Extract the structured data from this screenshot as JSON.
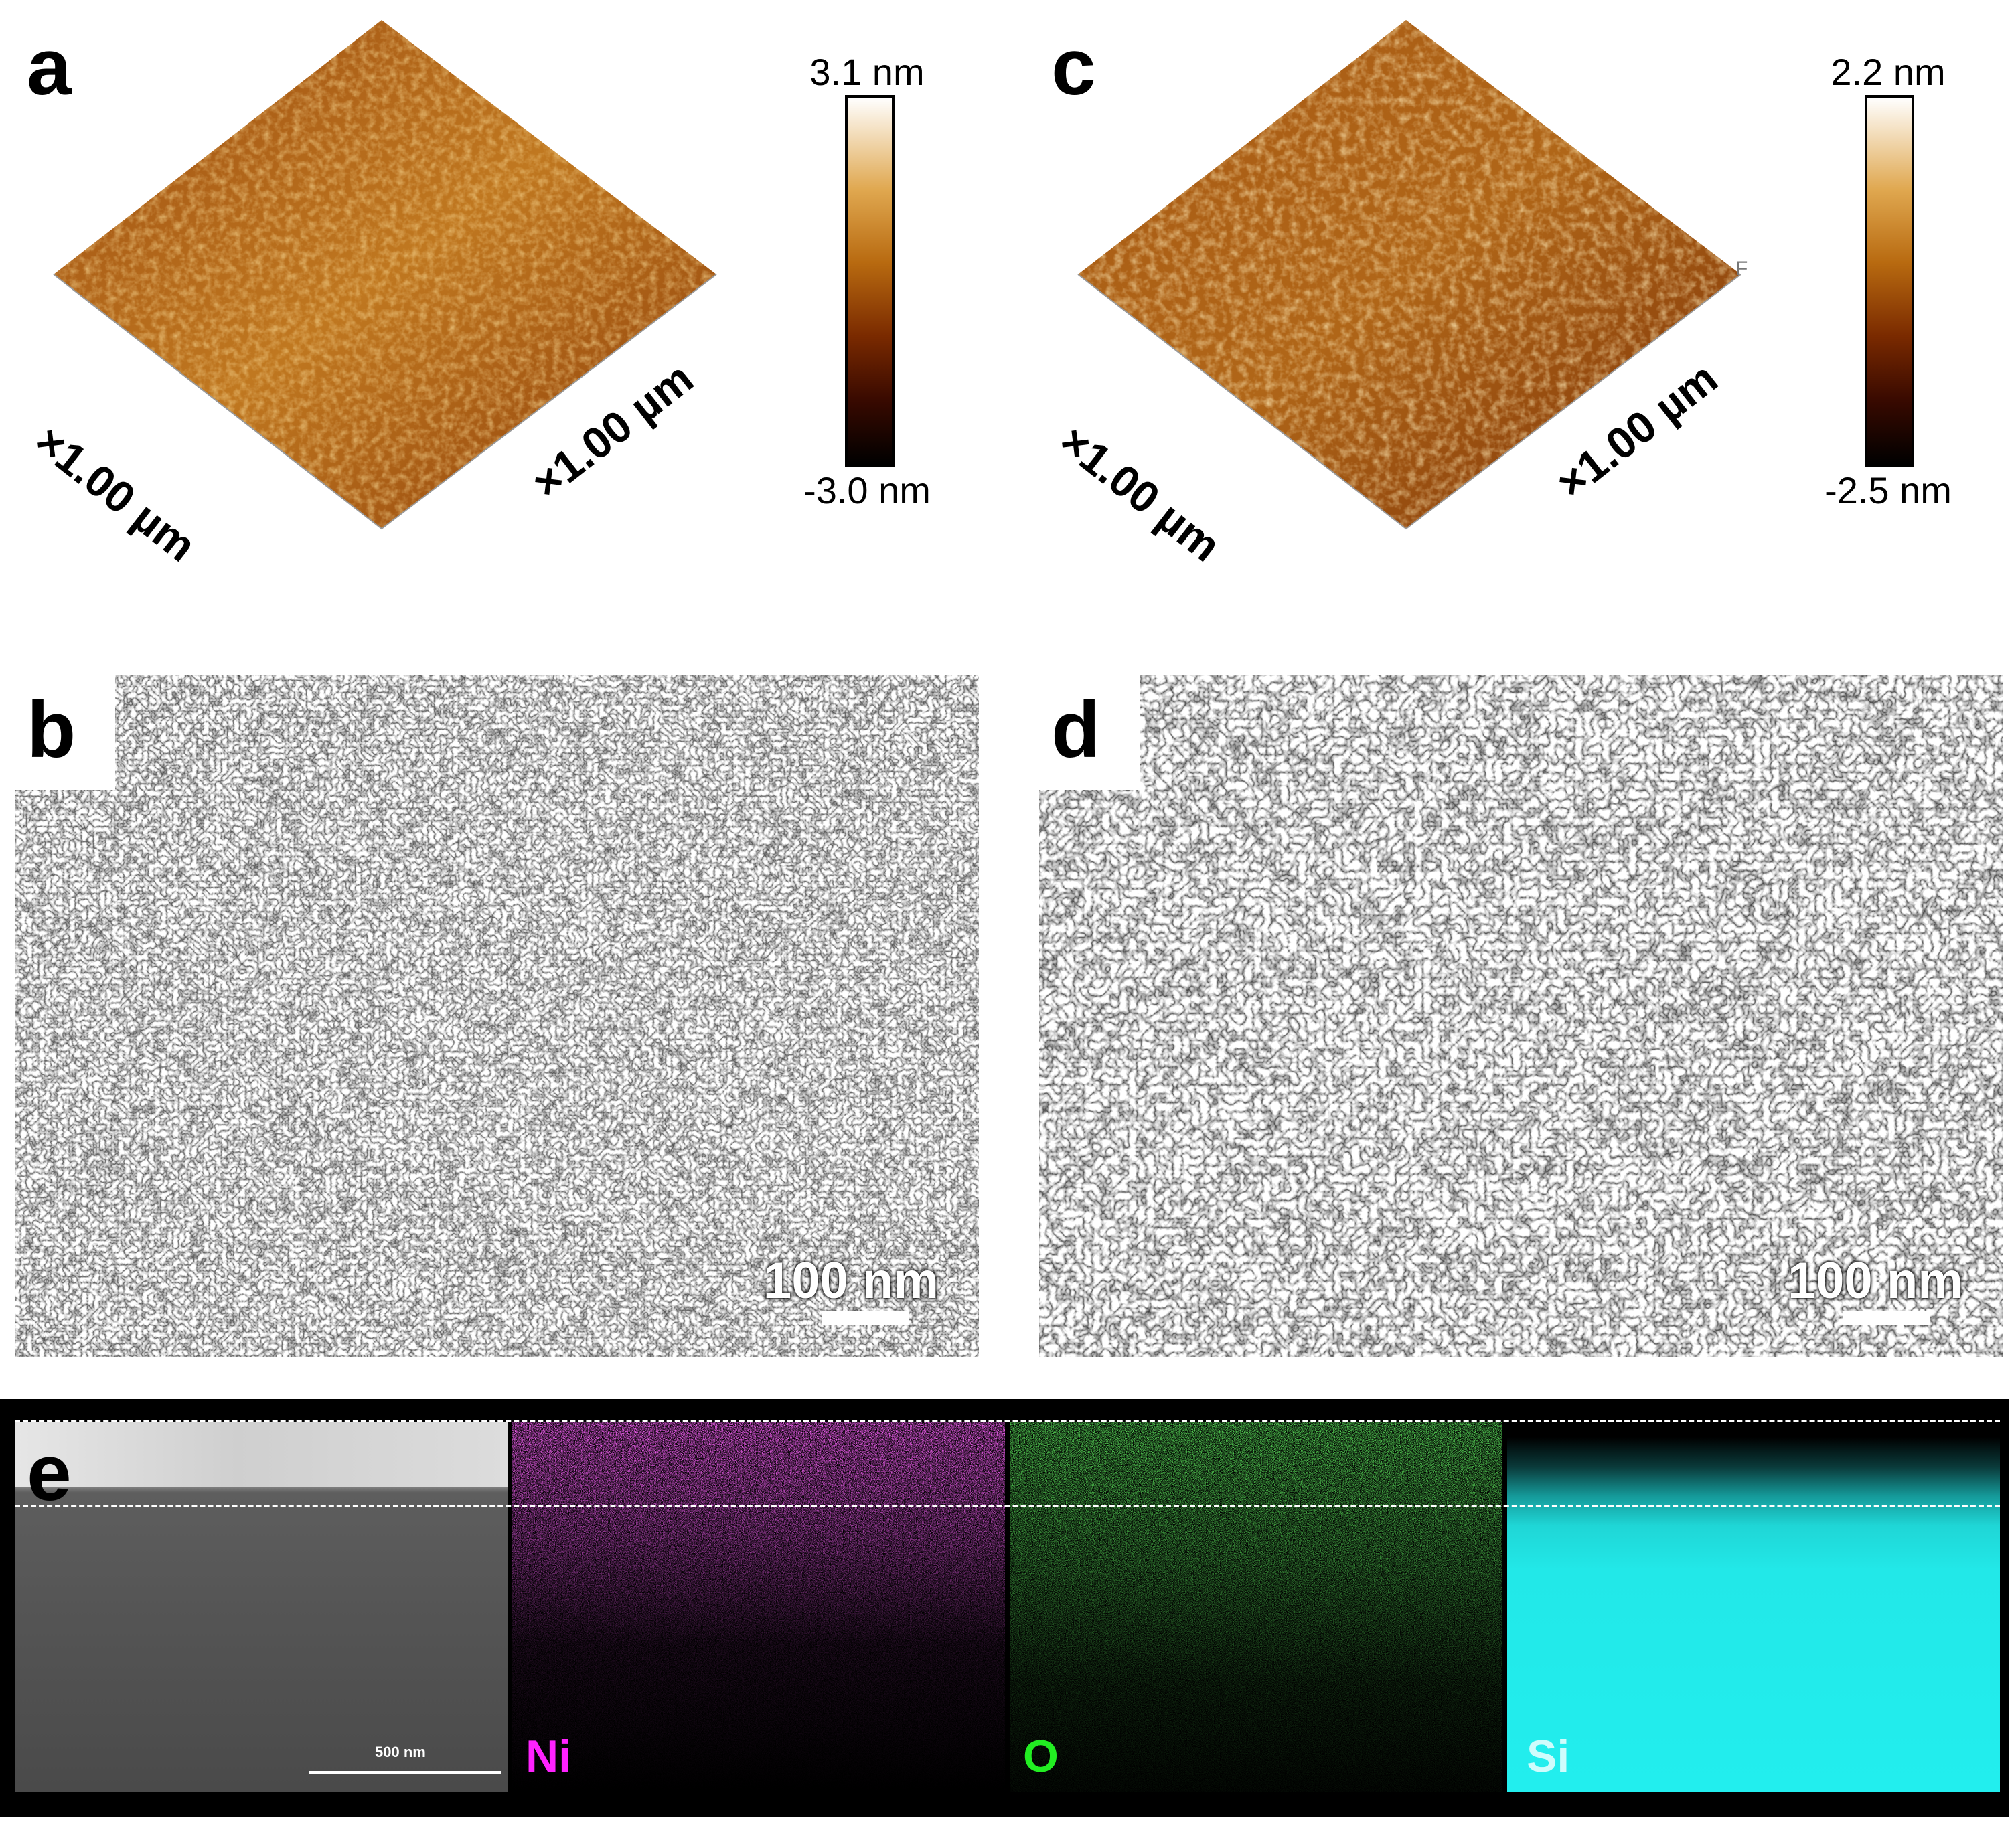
{
  "panels": {
    "a": {
      "letter": "a",
      "axis_left": "×1.00 µm",
      "axis_right": "×1.00 µm",
      "colorbar_max": "3.1 nm",
      "colorbar_min": "-3.0 nm"
    },
    "c": {
      "letter": "c",
      "axis_left": "×1.00 µm",
      "axis_right": "×1.00 µm",
      "colorbar_max": "2.2 nm",
      "colorbar_min": "-2.5 nm",
      "corner_mark": "F"
    },
    "b": {
      "letter": "b",
      "scale_label": "100 nm"
    },
    "d": {
      "letter": "d",
      "scale_label": "100 nm"
    },
    "e": {
      "letter": "e",
      "sem_scale_label": "500 nm",
      "maps": [
        {
          "element": "Ni",
          "color": "#ff22ff"
        },
        {
          "element": "O",
          "color": "#22ee22"
        },
        {
          "element": "Si",
          "color": "#22eeee"
        }
      ]
    }
  },
  "colormap": [
    "#000000",
    "#3a0a00",
    "#7a2a00",
    "#b86a10",
    "#e0a850",
    "#ffffff"
  ]
}
